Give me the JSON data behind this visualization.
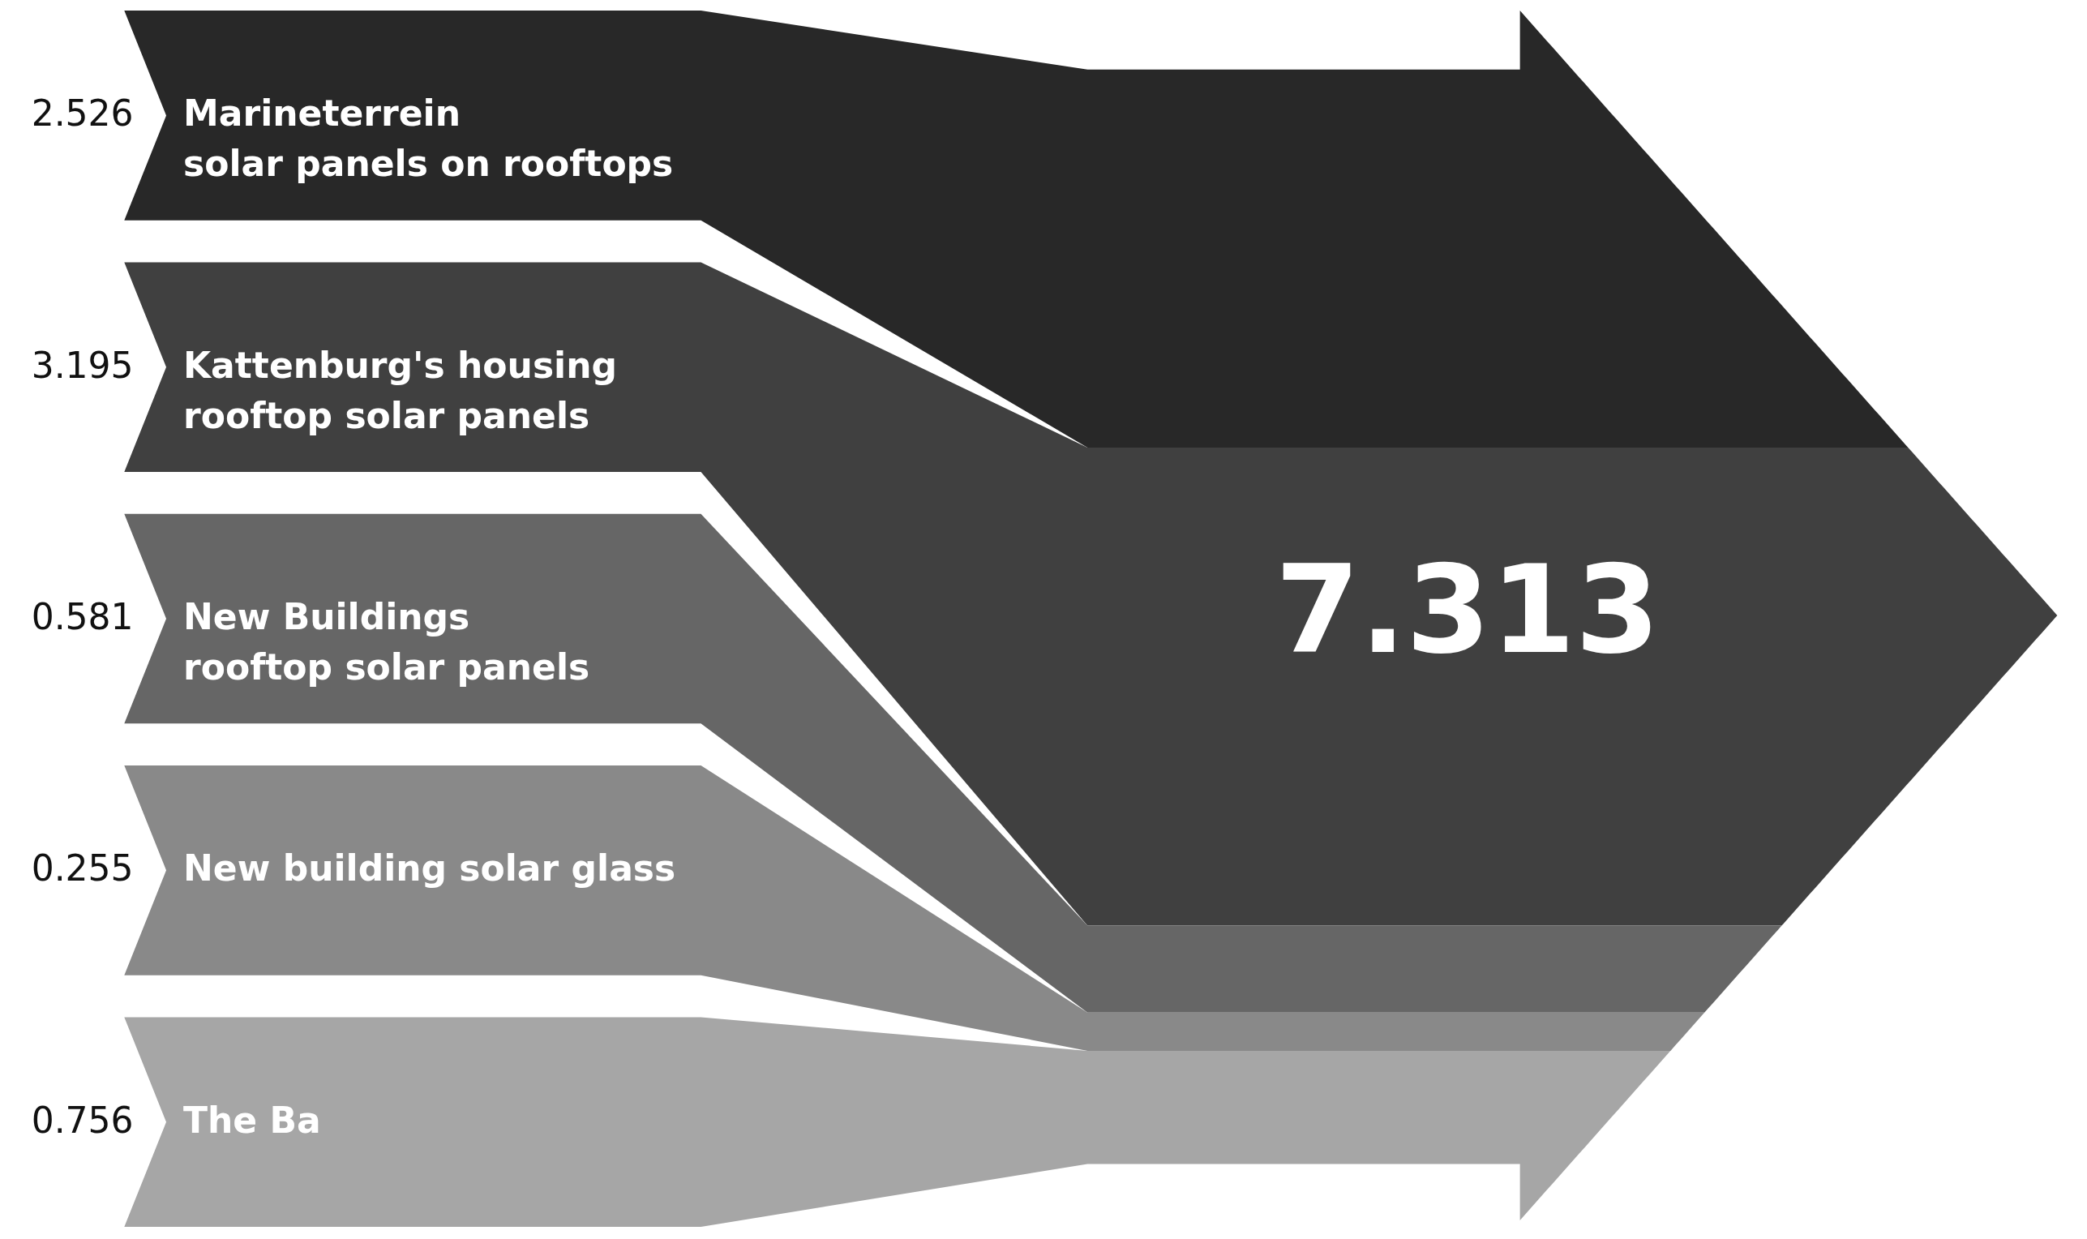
{
  "chart_data": {
    "type": "other",
    "categories": [
      "Marineterrein\nsolar panels on rooftops",
      "Kattenburg's housing\nrooftop solar panels",
      "New Buildings\nrooftop solar panels",
      "New building solar glass",
      "The Ba"
    ],
    "values": [
      2.526,
      3.195,
      0.581,
      0.255,
      0.756
    ],
    "colors": [
      "#282828",
      "#404040",
      "#666666",
      "#898989",
      "#a6a6a6"
    ],
    "data_labels": true,
    "totals": [
      "7.313"
    ]
  }
}
